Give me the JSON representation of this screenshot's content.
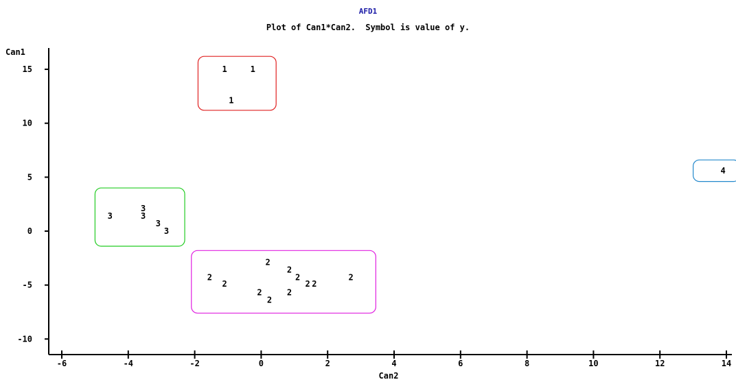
{
  "chart_data": {
    "type": "scatter",
    "title": "AFD1",
    "subtitle": "Plot of Can1*Can2.  Symbol is value of y.",
    "xlabel": "Can2",
    "ylabel": "Can1",
    "xlim": [
      -6.3,
      14.3
    ],
    "ylim": [
      -11,
      17
    ],
    "x_ticks": [
      -6,
      -4,
      -2,
      0,
      2,
      4,
      6,
      8,
      10,
      12,
      14
    ],
    "y_ticks": [
      15,
      10,
      5,
      0,
      -5,
      -10
    ],
    "legend": "none",
    "grid": false,
    "points": [
      {
        "x": -1.1,
        "y": 15.0,
        "label": "1"
      },
      {
        "x": -0.25,
        "y": 15.0,
        "label": "1"
      },
      {
        "x": -0.9,
        "y": 12.1,
        "label": "1"
      },
      {
        "x": -4.55,
        "y": 1.4,
        "label": "3"
      },
      {
        "x": -3.55,
        "y": 2.1,
        "label": "3"
      },
      {
        "x": -3.55,
        "y": 1.4,
        "label": "3"
      },
      {
        "x": -3.1,
        "y": 0.7,
        "label": "3"
      },
      {
        "x": -2.85,
        "y": 0.0,
        "label": "3"
      },
      {
        "x": 0.2,
        "y": -2.9,
        "label": "2"
      },
      {
        "x": -1.55,
        "y": -4.3,
        "label": "2"
      },
      {
        "x": -1.1,
        "y": -4.9,
        "label": "2"
      },
      {
        "x": 0.85,
        "y": -3.6,
        "label": "2"
      },
      {
        "x": 1.1,
        "y": -4.3,
        "label": "2"
      },
      {
        "x": 1.4,
        "y": -4.9,
        "label": "2"
      },
      {
        "x": 1.6,
        "y": -4.9,
        "label": "2"
      },
      {
        "x": -0.05,
        "y": -5.7,
        "label": "2"
      },
      {
        "x": 0.25,
        "y": -6.4,
        "label": "2"
      },
      {
        "x": 0.85,
        "y": -5.7,
        "label": "2"
      },
      {
        "x": 2.7,
        "y": -4.3,
        "label": "2"
      },
      {
        "x": 13.9,
        "y": 5.6,
        "label": "4"
      }
    ],
    "group_boxes": [
      {
        "group": "1",
        "color": "#e02020",
        "x": [
          -1.9,
          0.45
        ],
        "y": [
          11.2,
          16.2
        ]
      },
      {
        "group": "3",
        "color": "#22cc22",
        "x": [
          -5.0,
          -2.3
        ],
        "y": [
          -1.4,
          4.0
        ]
      },
      {
        "group": "2",
        "color": "#e020e0",
        "x": [
          -2.1,
          3.45
        ],
        "y": [
          -7.6,
          -1.8
        ]
      },
      {
        "group": "4",
        "color": "#2288cc",
        "x": [
          13.0,
          14.4
        ],
        "y": [
          4.6,
          6.6
        ]
      }
    ]
  }
}
